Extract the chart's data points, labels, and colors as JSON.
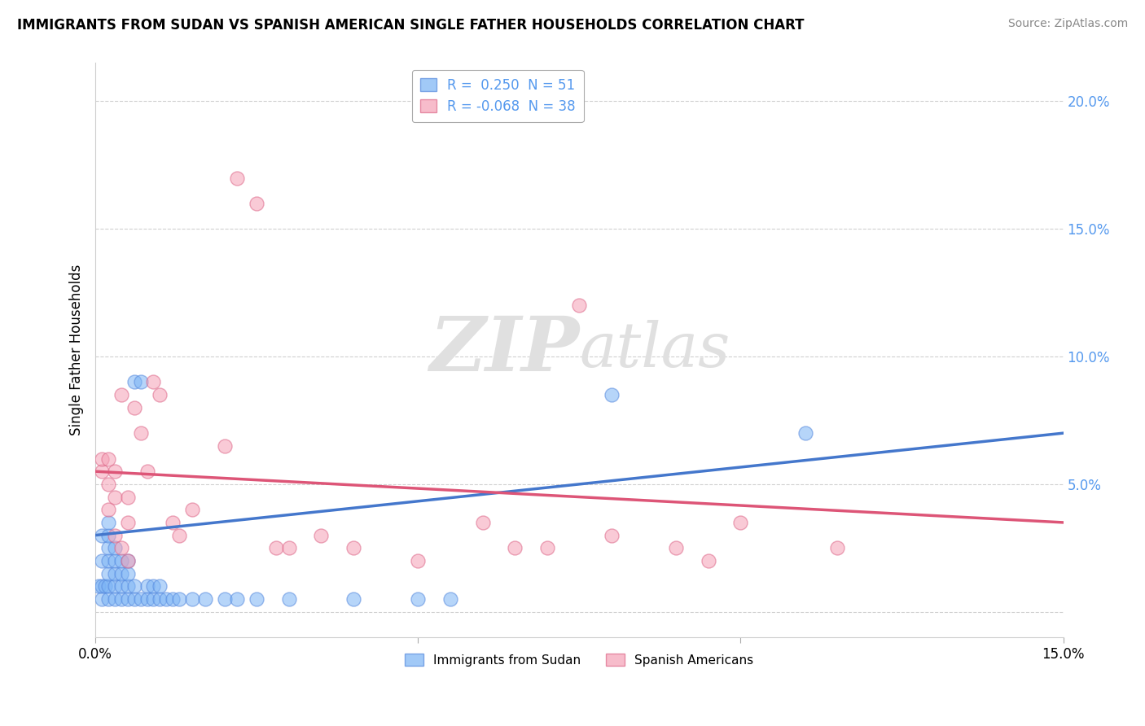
{
  "title": "IMMIGRANTS FROM SUDAN VS SPANISH AMERICAN SINGLE FATHER HOUSEHOLDS CORRELATION CHART",
  "source": "Source: ZipAtlas.com",
  "ylabel": "Single Father Households",
  "y_ticks": [
    0.0,
    0.05,
    0.1,
    0.15,
    0.2
  ],
  "y_tick_labels": [
    "",
    "5.0%",
    "10.0%",
    "15.0%",
    "20.0%"
  ],
  "x_ticks": [
    0.0,
    0.05,
    0.1,
    0.15
  ],
  "x_tick_labels": [
    "0.0%",
    "",
    "",
    "15.0%"
  ],
  "x_min": 0.0,
  "x_max": 0.15,
  "y_min": -0.01,
  "y_max": 0.215,
  "series1_name": "Immigrants from Sudan",
  "series2_name": "Spanish Americans",
  "series1_color": "#7ab3f5",
  "series2_color": "#f5a0b5",
  "series1_line_color": "#4477cc",
  "series2_line_color": "#dd5577",
  "series1_edge_color": "#5588dd",
  "series2_edge_color": "#dd6688",
  "watermark_color": "#e0e0e0",
  "background_color": "#ffffff",
  "grid_color": "#d0d0d0",
  "tick_color": "#5599ee",
  "legend1_r": "R =  0.250",
  "legend1_n": "N = 51",
  "legend2_r": "R = -0.068",
  "legend2_n": "N = 38",
  "series1_x": [
    0.0005,
    0.001,
    0.001,
    0.001,
    0.001,
    0.0015,
    0.002,
    0.002,
    0.002,
    0.002,
    0.002,
    0.002,
    0.002,
    0.003,
    0.003,
    0.003,
    0.003,
    0.003,
    0.004,
    0.004,
    0.004,
    0.004,
    0.005,
    0.005,
    0.005,
    0.005,
    0.006,
    0.006,
    0.006,
    0.007,
    0.007,
    0.008,
    0.008,
    0.009,
    0.009,
    0.01,
    0.01,
    0.011,
    0.012,
    0.013,
    0.015,
    0.017,
    0.02,
    0.022,
    0.025,
    0.03,
    0.04,
    0.05,
    0.055,
    0.08,
    0.11
  ],
  "series1_y": [
    0.01,
    0.005,
    0.01,
    0.02,
    0.03,
    0.01,
    0.005,
    0.01,
    0.015,
    0.02,
    0.025,
    0.03,
    0.035,
    0.005,
    0.01,
    0.015,
    0.02,
    0.025,
    0.005,
    0.01,
    0.015,
    0.02,
    0.005,
    0.01,
    0.015,
    0.02,
    0.005,
    0.01,
    0.09,
    0.005,
    0.09,
    0.005,
    0.01,
    0.005,
    0.01,
    0.005,
    0.01,
    0.005,
    0.005,
    0.005,
    0.005,
    0.005,
    0.005,
    0.005,
    0.005,
    0.005,
    0.005,
    0.005,
    0.005,
    0.085,
    0.07
  ],
  "series2_x": [
    0.001,
    0.001,
    0.002,
    0.002,
    0.002,
    0.003,
    0.003,
    0.003,
    0.004,
    0.004,
    0.005,
    0.005,
    0.005,
    0.006,
    0.007,
    0.008,
    0.009,
    0.01,
    0.012,
    0.013,
    0.015,
    0.02,
    0.022,
    0.025,
    0.028,
    0.03,
    0.035,
    0.04,
    0.05,
    0.06,
    0.065,
    0.07,
    0.075,
    0.08,
    0.09,
    0.095,
    0.1,
    0.115
  ],
  "series2_y": [
    0.055,
    0.06,
    0.04,
    0.05,
    0.06,
    0.03,
    0.045,
    0.055,
    0.025,
    0.085,
    0.02,
    0.035,
    0.045,
    0.08,
    0.07,
    0.055,
    0.09,
    0.085,
    0.035,
    0.03,
    0.04,
    0.065,
    0.17,
    0.16,
    0.025,
    0.025,
    0.03,
    0.025,
    0.02,
    0.035,
    0.025,
    0.025,
    0.12,
    0.03,
    0.025,
    0.02,
    0.035,
    0.025
  ],
  "line1_x0": 0.0,
  "line1_y0": 0.03,
  "line1_x1": 0.15,
  "line1_y1": 0.07,
  "line2_x0": 0.0,
  "line2_y0": 0.055,
  "line2_x1": 0.15,
  "line2_y1": 0.035
}
